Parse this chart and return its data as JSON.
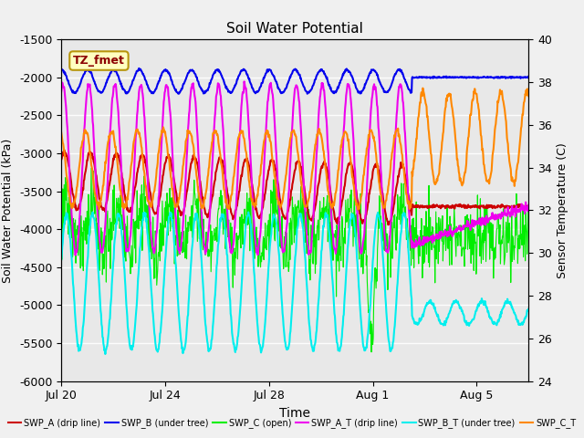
{
  "title": "Soil Water Potential",
  "xlabel": "Time",
  "ylabel_left": "Soil Water Potential (kPa)",
  "ylabel_right": "Sensor Temperature (C)",
  "ylim_left": [
    -6000,
    -1500
  ],
  "ylim_right": [
    24,
    40
  ],
  "bg_color": "#f0f0f0",
  "plot_bg": "#e8e8e8",
  "annotation": "TZ_fmet",
  "colors": {
    "swp_a": "#cc0000",
    "swp_b": "#0000ee",
    "swp_c": "#00ee00",
    "swp_at": "#ee00ee",
    "swp_bt": "#00eeee",
    "swp_ct": "#ff8800"
  },
  "xtick_labels": [
    "Jul 20",
    "Jul 24",
    "Jul 28",
    "Aug 1",
    "Aug 5"
  ],
  "xtick_days": [
    0,
    4,
    8,
    12,
    16
  ],
  "ytick_left": [
    -6000,
    -5500,
    -5000,
    -4500,
    -4000,
    -3500,
    -3000,
    -2500,
    -2000,
    -1500
  ],
  "ytick_right": [
    24,
    26,
    28,
    30,
    32,
    34,
    36,
    38,
    40
  ],
  "total_days": 18,
  "flat_day": 13.5,
  "legend_labels": [
    "SWP_A (drip line)",
    "SWP_B (under tree)",
    "SWP_C (open)",
    "SWP_A_T (drip line)",
    "SWP_B_T (under tree)",
    "SWP_C_T"
  ]
}
